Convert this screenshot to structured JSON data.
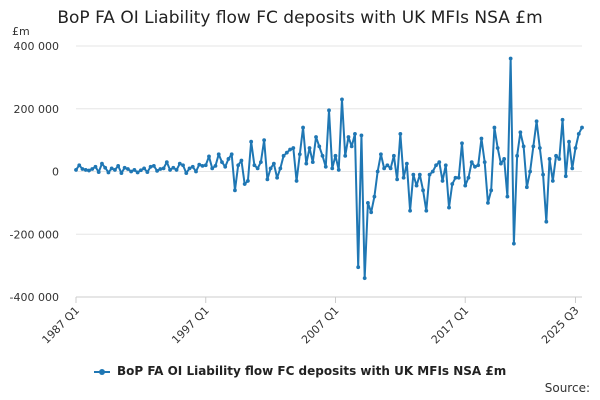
{
  "chart_data": {
    "type": "line",
    "title": "BoP FA OI Liability flow FC deposits with UK MFIs NSA £m",
    "unit_label": "£m",
    "xlabel": "",
    "ylabel": "",
    "ylim": [
      -400000,
      400000
    ],
    "y_ticks": [
      400000,
      200000,
      0,
      -200000,
      -400000
    ],
    "y_tick_labels": [
      "400 000",
      "200 000",
      "0",
      "-200 000",
      "-400 000"
    ],
    "x_tick_labels": [
      "1987 Q1",
      "1997 Q1",
      "2007 Q1",
      "2017 Q1",
      "2025 Q3"
    ],
    "x_tick_indices": [
      0,
      40,
      80,
      120,
      154
    ],
    "grid": "horizontal",
    "legend_position": "bottom",
    "color": "#1f77b4",
    "series": [
      {
        "name": "BoP FA OI Liability flow FC deposits with UK MFIs NSA £m",
        "start": "1987 Q1",
        "frequency": "quarterly",
        "values": [
          5000,
          20000,
          8000,
          5000,
          3000,
          8000,
          15000,
          -2000,
          25000,
          12000,
          -3000,
          10000,
          5000,
          18000,
          -5000,
          12000,
          8000,
          0,
          5000,
          -3000,
          4000,
          10000,
          -2000,
          15000,
          18000,
          2000,
          8000,
          10000,
          30000,
          5000,
          12000,
          5000,
          25000,
          20000,
          -5000,
          10000,
          15000,
          0,
          22000,
          18000,
          20000,
          48000,
          10000,
          18000,
          55000,
          30000,
          15000,
          40000,
          55000,
          -60000,
          20000,
          35000,
          -40000,
          -30000,
          95000,
          20000,
          10000,
          30000,
          100000,
          -25000,
          10000,
          25000,
          -20000,
          10000,
          50000,
          60000,
          70000,
          75000,
          -30000,
          55000,
          140000,
          25000,
          75000,
          30000,
          110000,
          80000,
          50000,
          15000,
          195000,
          10000,
          50000,
          5000,
          230000,
          50000,
          110000,
          80000,
          120000,
          -305000,
          115000,
          -340000,
          -100000,
          -130000,
          -80000,
          0,
          55000,
          10000,
          20000,
          10000,
          50000,
          -25000,
          120000,
          -20000,
          25000,
          -125000,
          -10000,
          -45000,
          -10000,
          -60000,
          -125000,
          -10000,
          0,
          20000,
          30000,
          -30000,
          20000,
          -115000,
          -40000,
          -20000,
          -20000,
          90000,
          -45000,
          -20000,
          30000,
          15000,
          20000,
          105000,
          30000,
          -100000,
          -60000,
          140000,
          75000,
          25000,
          40000,
          -80000,
          360000,
          -230000,
          50000,
          125000,
          80000,
          -50000,
          0,
          80000,
          160000,
          75000,
          -10000,
          -160000,
          40000,
          -30000,
          50000,
          40000,
          165000,
          -15000,
          95000,
          10000,
          75000,
          120000,
          140000
        ]
      }
    ]
  },
  "source_label": "Source:"
}
